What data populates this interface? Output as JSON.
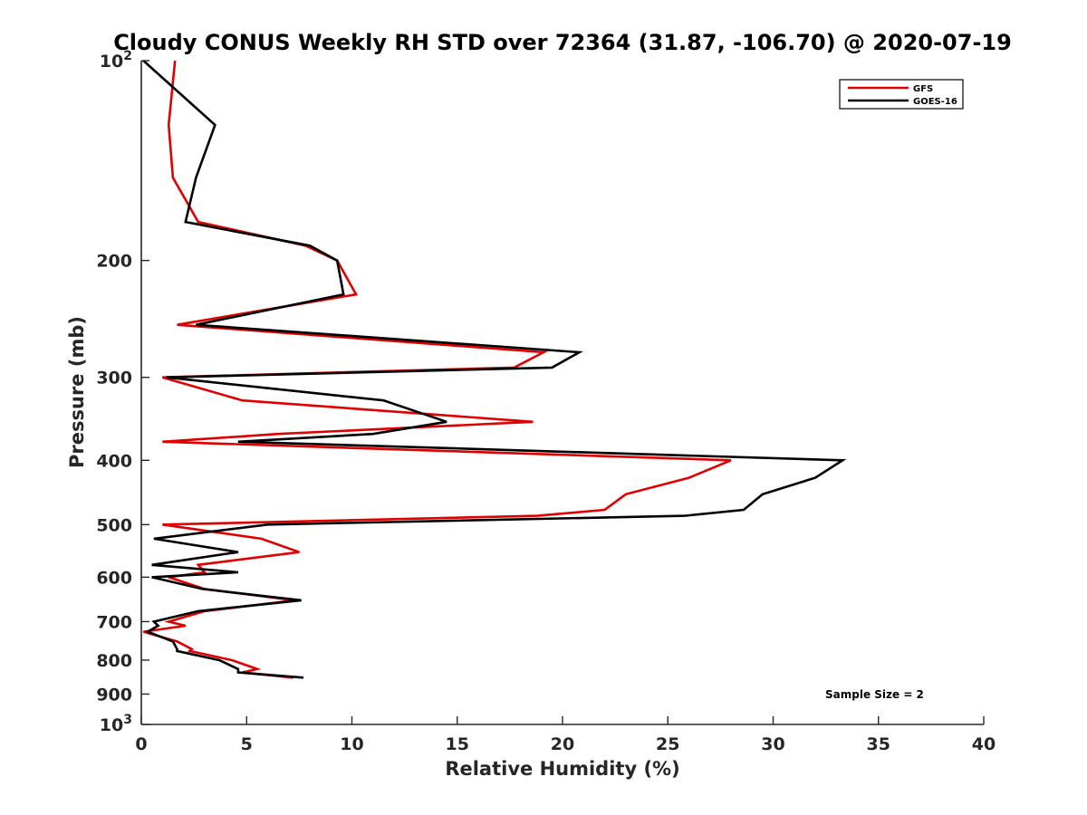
{
  "chart_data": {
    "type": "line",
    "title": "Cloudy CONUS Weekly RH STD over 72364 (31.87, -106.70) @ 2020-07-19",
    "xlabel": "Relative Humidity (%)",
    "ylabel": "Pressure (mb)",
    "xlim": [
      0,
      40
    ],
    "ylim": [
      100,
      1000
    ],
    "yscale": "log",
    "yreversed": true,
    "xticks": [
      0,
      5,
      10,
      15,
      20,
      25,
      30,
      35,
      40
    ],
    "xtick_labels": [
      "0",
      "5",
      "10",
      "15",
      "20",
      "25",
      "30",
      "35",
      "40"
    ],
    "yticks": [
      100,
      200,
      300,
      400,
      500,
      600,
      700,
      800,
      900,
      1000
    ],
    "ytick_labels": [
      {
        "base": "10",
        "exp": "2"
      },
      {
        "base": "200",
        "exp": ""
      },
      {
        "base": "300",
        "exp": ""
      },
      {
        "base": "400",
        "exp": ""
      },
      {
        "base": "500",
        "exp": ""
      },
      {
        "base": "600",
        "exp": ""
      },
      {
        "base": "700",
        "exp": ""
      },
      {
        "base": "800",
        "exp": ""
      },
      {
        "base": "900",
        "exp": ""
      },
      {
        "base": "10",
        "exp": "3"
      }
    ],
    "grid": false,
    "legend_position": "top-right",
    "annotation": "Sample Size = 2",
    "series": [
      {
        "name": "GFS",
        "color": "#e00000",
        "points": [
          [
            1.6,
            100
          ],
          [
            1.3,
            125
          ],
          [
            1.5,
            150
          ],
          [
            2.7,
            175
          ],
          [
            7.8,
            190
          ],
          [
            9.3,
            200
          ],
          [
            10.2,
            225
          ],
          [
            1.7,
            250
          ],
          [
            19.1,
            275
          ],
          [
            17.7,
            290
          ],
          [
            1.0,
            300
          ],
          [
            4.8,
            325
          ],
          [
            18.6,
            350
          ],
          [
            6.5,
            365
          ],
          [
            1.0,
            375
          ],
          [
            28.0,
            400
          ],
          [
            26.0,
            425
          ],
          [
            23.0,
            450
          ],
          [
            22.0,
            475
          ],
          [
            18.8,
            485
          ],
          [
            1.0,
            500
          ],
          [
            5.7,
            525
          ],
          [
            7.5,
            550
          ],
          [
            2.7,
            575
          ],
          [
            3.0,
            590
          ],
          [
            1.3,
            600
          ],
          [
            3.0,
            625
          ],
          [
            7.3,
            650
          ],
          [
            3.0,
            675
          ],
          [
            1.3,
            700
          ],
          [
            2.1,
            710
          ],
          [
            0.1,
            725
          ],
          [
            1.7,
            750
          ],
          [
            2.4,
            770
          ],
          [
            2.3,
            775
          ],
          [
            4.3,
            800
          ],
          [
            5.5,
            825
          ],
          [
            4.8,
            835
          ],
          [
            7.2,
            850
          ]
        ]
      },
      {
        "name": "GOES-16",
        "color": "#000000",
        "points": [
          [
            0.1,
            100
          ],
          [
            3.5,
            125
          ],
          [
            2.6,
            150
          ],
          [
            2.1,
            175
          ],
          [
            8.0,
            190
          ],
          [
            9.3,
            200
          ],
          [
            9.6,
            225
          ],
          [
            2.6,
            250
          ],
          [
            20.8,
            275
          ],
          [
            19.5,
            290
          ],
          [
            1.2,
            300
          ],
          [
            11.5,
            325
          ],
          [
            14.5,
            350
          ],
          [
            11.0,
            365
          ],
          [
            4.6,
            375
          ],
          [
            33.3,
            400
          ],
          [
            32.0,
            425
          ],
          [
            29.5,
            450
          ],
          [
            28.6,
            475
          ],
          [
            25.8,
            485
          ],
          [
            6.0,
            500
          ],
          [
            0.6,
            525
          ],
          [
            4.6,
            550
          ],
          [
            0.5,
            575
          ],
          [
            4.6,
            590
          ],
          [
            0.5,
            600
          ],
          [
            2.9,
            625
          ],
          [
            7.6,
            650
          ],
          [
            2.7,
            675
          ],
          [
            0.6,
            700
          ],
          [
            0.8,
            710
          ],
          [
            0.3,
            725
          ],
          [
            1.5,
            750
          ],
          [
            1.7,
            770
          ],
          [
            1.7,
            775
          ],
          [
            3.7,
            800
          ],
          [
            4.6,
            825
          ],
          [
            4.6,
            835
          ],
          [
            7.7,
            850
          ]
        ]
      }
    ]
  }
}
